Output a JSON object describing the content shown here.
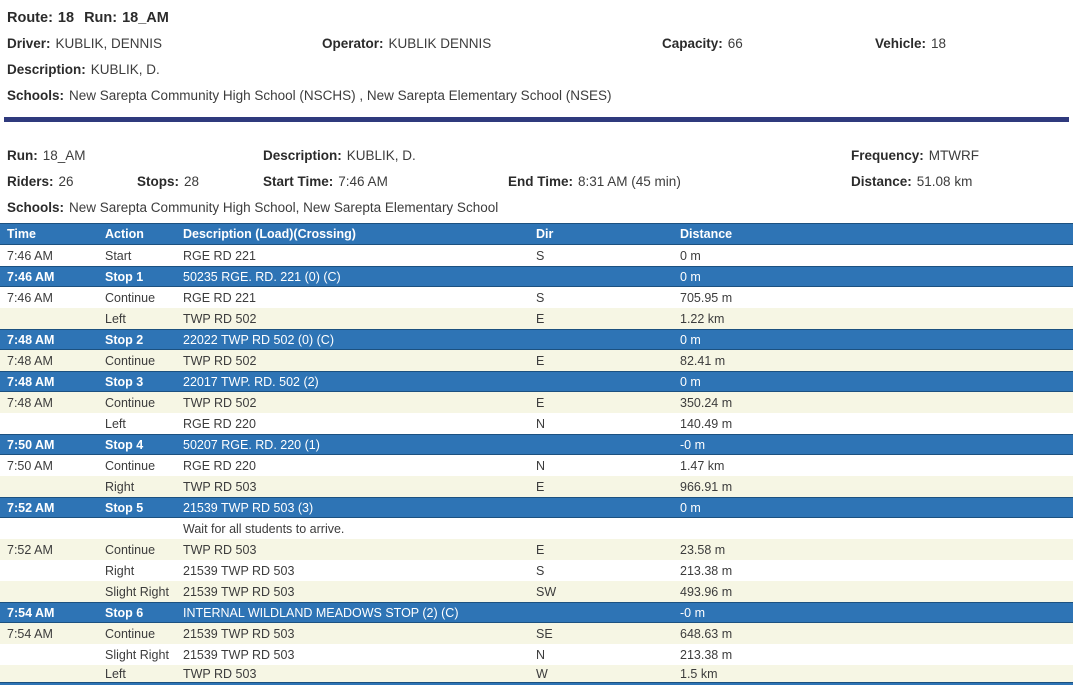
{
  "colors": {
    "table_blue": "#2e74b5",
    "stop_row_blue": "#2e74b5",
    "row_cream": "#f6f6e4",
    "separator_navy": "#2f3a7d",
    "text_dark": "#3c3c3c"
  },
  "route_header": {
    "route_label": "Route:",
    "route_value": "18",
    "run_label": "Run:",
    "run_value": "18_AM",
    "driver_label": "Driver:",
    "driver_value": "KUBLIK, DENNIS",
    "operator_label": "Operator:",
    "operator_value": "KUBLIK DENNIS",
    "capacity_label": "Capacity:",
    "capacity_value": "66",
    "vehicle_label": "Vehicle:",
    "vehicle_value": "18",
    "description_label": "Description:",
    "description_value": "KUBLIK, D.",
    "schools_label": "Schools:",
    "schools_value": "New Sarepta Community High School (NSCHS) , New Sarepta Elementary School (NSES)"
  },
  "run_summary": {
    "run_label": "Run:",
    "run_value": "18_AM",
    "description_label": "Description:",
    "description_value": "KUBLIK, D.",
    "frequency_label": "Frequency:",
    "frequency_value": "MTWRF",
    "riders_label": "Riders:",
    "riders_value": "26",
    "stops_label": "Stops:",
    "stops_value": "28",
    "start_time_label": "Start Time:",
    "start_time_value": "7:46 AM",
    "end_time_label": "End Time:",
    "end_time_value": "8:31 AM (45 min)",
    "distance_label": "Distance:",
    "distance_value": "51.08 km",
    "schools_label": "Schools:",
    "schools_value": "New Sarepta Community High School, New Sarepta Elementary School"
  },
  "table": {
    "columns": {
      "time": "Time",
      "action": "Action",
      "description": "Description (Load)(Crossing)",
      "dir": "Dir",
      "distance": "Distance"
    },
    "rows": [
      {
        "type": "move",
        "shade": "white",
        "time": "7:46 AM",
        "action": "Start",
        "description": "RGE RD 221",
        "dir": "S",
        "distance": "0 m"
      },
      {
        "type": "stop",
        "shade": "stop",
        "time": "7:46 AM",
        "action": "Stop 1",
        "description": "50235 RGE. RD. 221 (0) (C)",
        "dir": "",
        "distance": "0 m"
      },
      {
        "type": "move",
        "shade": "white",
        "time": "7:46 AM",
        "action": "Continue",
        "description": "RGE RD 221",
        "dir": "S",
        "distance": "705.95 m"
      },
      {
        "type": "move",
        "shade": "cream",
        "time": "",
        "action": "Left",
        "description": "TWP RD 502",
        "dir": "E",
        "distance": "1.22 km"
      },
      {
        "type": "stop",
        "shade": "stop",
        "time": "7:48 AM",
        "action": "Stop 2",
        "description": "22022 TWP RD 502 (0) (C)",
        "dir": "",
        "distance": "0 m"
      },
      {
        "type": "move",
        "shade": "cream",
        "time": "7:48 AM",
        "action": "Continue",
        "description": "TWP RD 502",
        "dir": "E",
        "distance": "82.41 m"
      },
      {
        "type": "stop",
        "shade": "stop",
        "time": "7:48 AM",
        "action": "Stop 3",
        "description": "22017 TWP. RD. 502 (2)",
        "dir": "",
        "distance": "0 m"
      },
      {
        "type": "move",
        "shade": "cream",
        "time": "7:48 AM",
        "action": "Continue",
        "description": "TWP RD 502",
        "dir": "E",
        "distance": "350.24 m"
      },
      {
        "type": "move",
        "shade": "white",
        "time": "",
        "action": "Left",
        "description": "RGE RD 220",
        "dir": "N",
        "distance": "140.49 m"
      },
      {
        "type": "stop",
        "shade": "stop",
        "time": "7:50 AM",
        "action": "Stop 4",
        "description": "50207 RGE. RD. 220 (1)",
        "dir": "",
        "distance": "-0 m"
      },
      {
        "type": "move",
        "shade": "white",
        "time": "7:50 AM",
        "action": "Continue",
        "description": "RGE RD 220",
        "dir": "N",
        "distance": "1.47 km"
      },
      {
        "type": "move",
        "shade": "cream",
        "time": "",
        "action": "Right",
        "description": "TWP RD 503",
        "dir": "E",
        "distance": "966.91 m"
      },
      {
        "type": "stop",
        "shade": "stop",
        "time": "7:52 AM",
        "action": "Stop 5",
        "description": "21539 TWP RD 503 (3)",
        "dir": "",
        "distance": "0 m"
      },
      {
        "type": "note",
        "shade": "white",
        "time": "",
        "action": "",
        "description": "Wait for all students to arrive.",
        "dir": "",
        "distance": ""
      },
      {
        "type": "move",
        "shade": "cream",
        "time": "7:52 AM",
        "action": "Continue",
        "description": "TWP RD 503",
        "dir": "E",
        "distance": "23.58 m"
      },
      {
        "type": "move",
        "shade": "white",
        "time": "",
        "action": "Right",
        "description": "21539 TWP RD 503",
        "dir": "S",
        "distance": "213.38 m"
      },
      {
        "type": "move",
        "shade": "cream",
        "time": "",
        "action": "Slight Right",
        "description": "21539 TWP RD 503",
        "dir": "SW",
        "distance": "493.96 m"
      },
      {
        "type": "stop",
        "shade": "stop",
        "time": "7:54 AM",
        "action": "Stop 6",
        "description": "INTERNAL WILDLAND MEADOWS STOP (2) (C)",
        "dir": "",
        "distance": "-0 m"
      },
      {
        "type": "move",
        "shade": "cream",
        "time": "7:54 AM",
        "action": "Continue",
        "description": "21539 TWP RD 503",
        "dir": "SE",
        "distance": "648.63 m"
      },
      {
        "type": "move",
        "shade": "white",
        "time": "",
        "action": "Slight Right",
        "description": "21539 TWP RD 503",
        "dir": "N",
        "distance": "213.38 m"
      },
      {
        "type": "move",
        "shade": "cream",
        "cut": true,
        "time": "",
        "action": "Left",
        "description": "TWP RD 503",
        "dir": "W",
        "distance": "1.5 km"
      }
    ]
  }
}
